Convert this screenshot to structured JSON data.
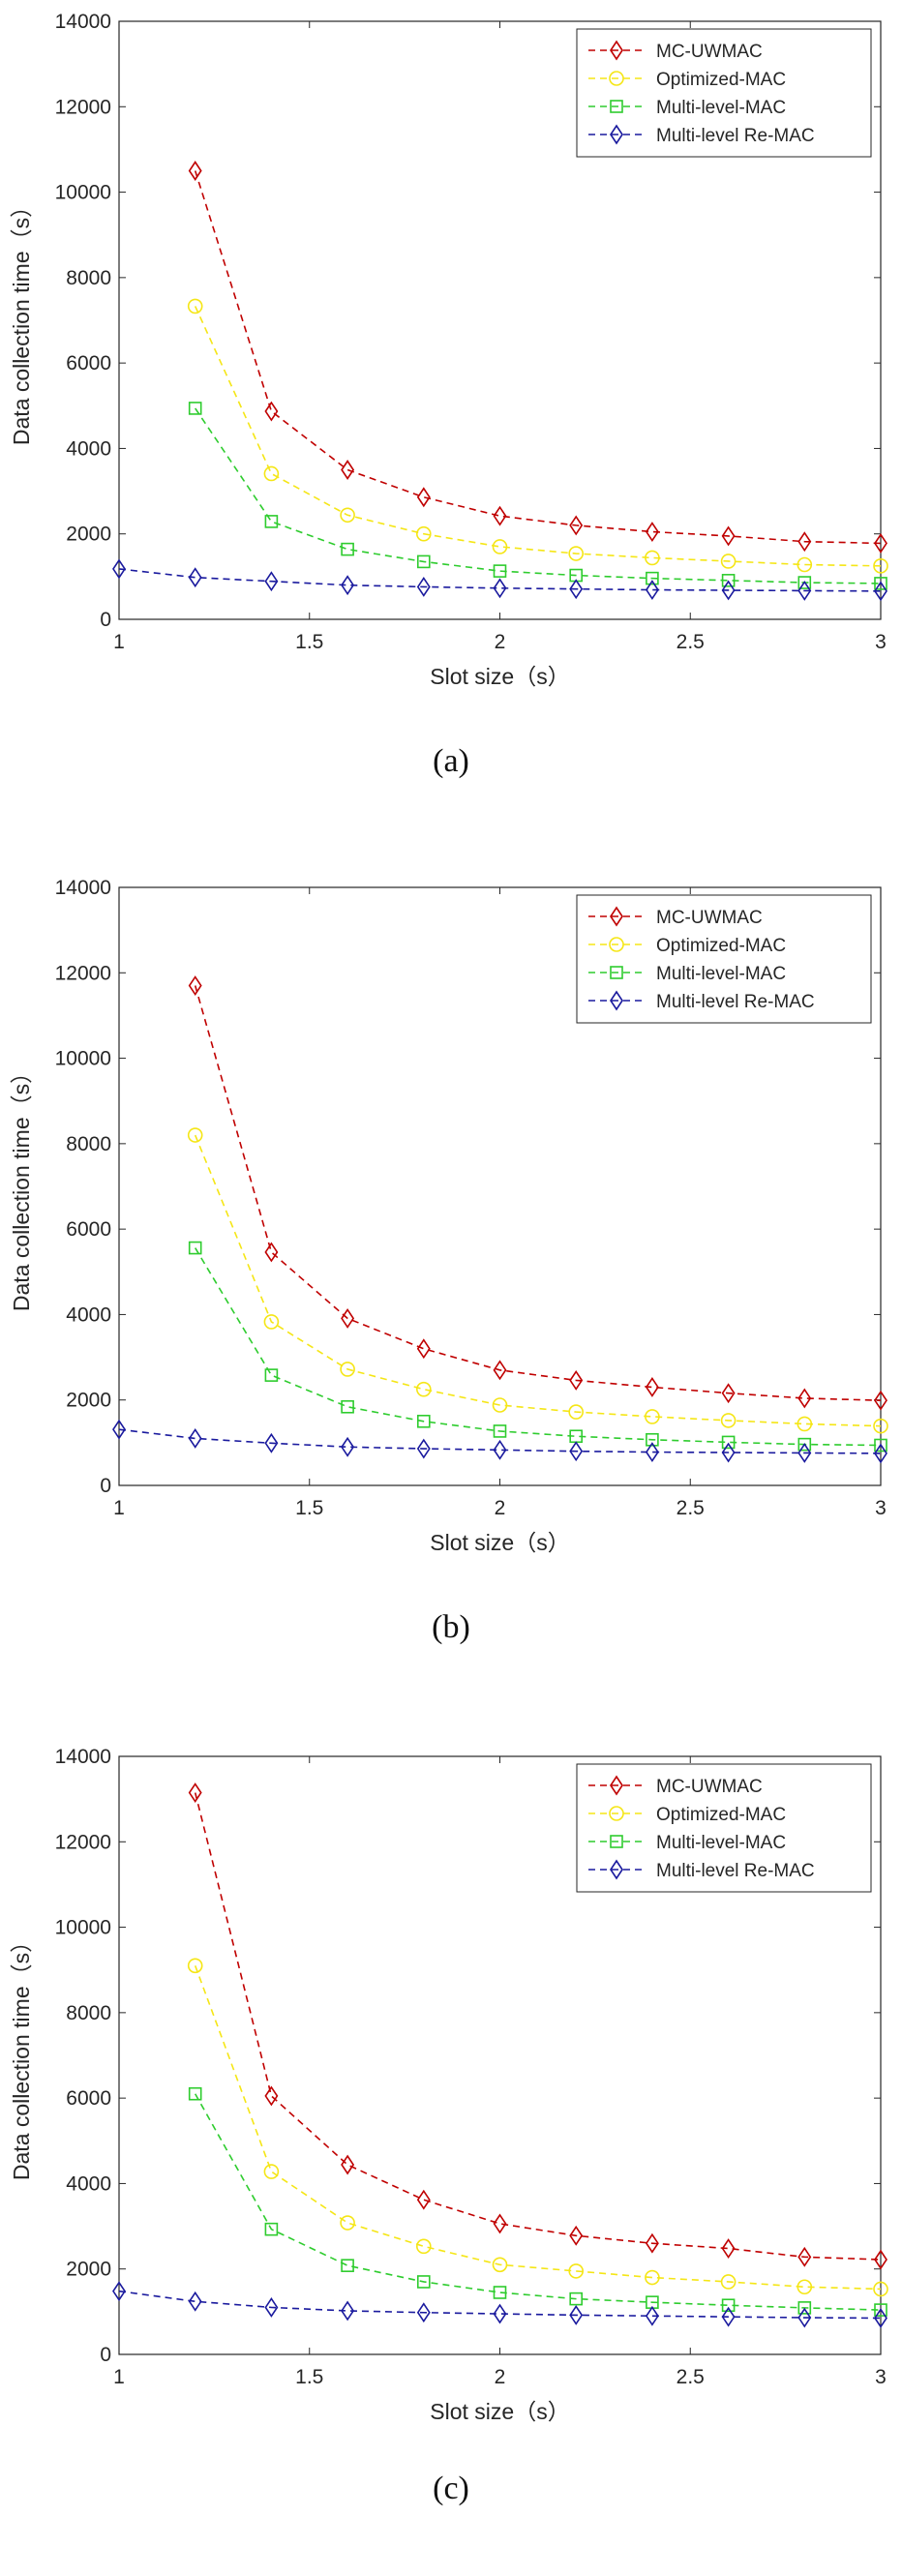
{
  "chart_data": [
    {
      "type": "line",
      "caption": "(a)",
      "xlabel": "Slot size（s）",
      "ylabel": "Data collection time（s）",
      "xlim": [
        1,
        3
      ],
      "ylim": [
        0,
        14000
      ],
      "xticks": [
        1,
        1.5,
        2,
        2.5,
        3
      ],
      "xtick_labels": [
        "1",
        "1.5",
        "2",
        "2.5",
        "3"
      ],
      "yticks": [
        0,
        2000,
        4000,
        6000,
        8000,
        10000,
        12000,
        14000
      ],
      "ytick_labels": [
        "0",
        "2000",
        "4000",
        "6000",
        "8000",
        "10000",
        "12000",
        "14000"
      ],
      "legend_position": "top-right",
      "series": [
        {
          "name": "MC-UWMAC",
          "color": "#c00000",
          "marker": "diamond",
          "x": [
            1.2,
            1.4,
            1.6,
            1.8,
            2.0,
            2.2,
            2.4,
            2.6,
            2.8,
            3.0
          ],
          "values": [
            10500,
            4870,
            3500,
            2860,
            2420,
            2200,
            2050,
            1950,
            1820,
            1780
          ]
        },
        {
          "name": "Optimized-MAC",
          "color": "#f5e616",
          "marker": "circle",
          "x": [
            1.2,
            1.4,
            1.6,
            1.8,
            2.0,
            2.2,
            2.4,
            2.6,
            2.8,
            3.0
          ],
          "values": [
            7330,
            3410,
            2440,
            2000,
            1700,
            1540,
            1440,
            1360,
            1280,
            1250
          ]
        },
        {
          "name": "Multi-level-MAC",
          "color": "#2ecc2e",
          "marker": "square",
          "x": [
            1.2,
            1.4,
            1.6,
            1.8,
            2.0,
            2.2,
            2.4,
            2.6,
            2.8,
            3.0
          ],
          "values": [
            4940,
            2290,
            1640,
            1350,
            1130,
            1030,
            960,
            910,
            860,
            840
          ]
        },
        {
          "name": "Multi-level Re-MAC",
          "color": "#1a1a9e",
          "marker": "diamond",
          "x": [
            1.0,
            1.2,
            1.4,
            1.6,
            1.8,
            2.0,
            2.2,
            2.4,
            2.6,
            2.8,
            3.0
          ],
          "values": [
            1180,
            980,
            890,
            800,
            760,
            730,
            710,
            690,
            680,
            670,
            660
          ]
        }
      ]
    },
    {
      "type": "line",
      "caption": "(b)",
      "xlabel": "Slot size（s）",
      "ylabel": "Data collection time（s）",
      "xlim": [
        1,
        3
      ],
      "ylim": [
        0,
        14000
      ],
      "xticks": [
        1,
        1.5,
        2,
        2.5,
        3
      ],
      "xtick_labels": [
        "1",
        "1.5",
        "2",
        "2.5",
        "3"
      ],
      "yticks": [
        0,
        2000,
        4000,
        6000,
        8000,
        10000,
        12000,
        14000
      ],
      "ytick_labels": [
        "0",
        "2000",
        "4000",
        "6000",
        "8000",
        "10000",
        "12000",
        "14000"
      ],
      "legend_position": "top-right",
      "series": [
        {
          "name": "MC-UWMAC",
          "color": "#c00000",
          "marker": "diamond",
          "x": [
            1.2,
            1.4,
            1.6,
            1.8,
            2.0,
            2.2,
            2.4,
            2.6,
            2.8,
            3.0
          ],
          "values": [
            11700,
            5460,
            3910,
            3200,
            2700,
            2460,
            2300,
            2160,
            2040,
            1990
          ]
        },
        {
          "name": "Optimized-MAC",
          "color": "#f5e616",
          "marker": "circle",
          "x": [
            1.2,
            1.4,
            1.6,
            1.8,
            2.0,
            2.2,
            2.4,
            2.6,
            2.8,
            3.0
          ],
          "values": [
            8200,
            3830,
            2720,
            2250,
            1880,
            1720,
            1610,
            1520,
            1440,
            1390
          ]
        },
        {
          "name": "Multi-level-MAC",
          "color": "#2ecc2e",
          "marker": "square",
          "x": [
            1.2,
            1.4,
            1.6,
            1.8,
            2.0,
            2.2,
            2.4,
            2.6,
            2.8,
            3.0
          ],
          "values": [
            5560,
            2580,
            1840,
            1500,
            1270,
            1150,
            1070,
            1010,
            960,
            940
          ]
        },
        {
          "name": "Multi-level Re-MAC",
          "color": "#1a1a9e",
          "marker": "diamond",
          "x": [
            1.0,
            1.2,
            1.4,
            1.6,
            1.8,
            2.0,
            2.2,
            2.4,
            2.6,
            2.8,
            3.0
          ],
          "values": [
            1310,
            1100,
            990,
            900,
            860,
            830,
            800,
            780,
            770,
            760,
            750
          ]
        }
      ]
    },
    {
      "type": "line",
      "caption": "(c)",
      "xlabel": "Slot size（s）",
      "ylabel": "Data collection time（s）",
      "xlim": [
        1,
        3
      ],
      "ylim": [
        0,
        14000
      ],
      "xticks": [
        1,
        1.5,
        2,
        2.5,
        3
      ],
      "xtick_labels": [
        "1",
        "1.5",
        "2",
        "2.5",
        "3"
      ],
      "yticks": [
        0,
        2000,
        4000,
        6000,
        8000,
        10000,
        12000,
        14000
      ],
      "ytick_labels": [
        "0",
        "2000",
        "4000",
        "6000",
        "8000",
        "10000",
        "12000",
        "14000"
      ],
      "legend_position": "top-right",
      "series": [
        {
          "name": "MC-UWMAC",
          "color": "#c00000",
          "marker": "diamond",
          "x": [
            1.2,
            1.4,
            1.6,
            1.8,
            2.0,
            2.2,
            2.4,
            2.6,
            2.8,
            3.0
          ],
          "values": [
            13150,
            6050,
            4440,
            3620,
            3060,
            2780,
            2600,
            2480,
            2280,
            2220
          ]
        },
        {
          "name": "Optimized-MAC",
          "color": "#f5e616",
          "marker": "circle",
          "x": [
            1.2,
            1.4,
            1.6,
            1.8,
            2.0,
            2.2,
            2.4,
            2.6,
            2.8,
            3.0
          ],
          "values": [
            9100,
            4280,
            3080,
            2530,
            2100,
            1950,
            1800,
            1700,
            1580,
            1530
          ]
        },
        {
          "name": "Multi-level-MAC",
          "color": "#2ecc2e",
          "marker": "square",
          "x": [
            1.2,
            1.4,
            1.6,
            1.8,
            2.0,
            2.2,
            2.4,
            2.6,
            2.8,
            3.0
          ],
          "values": [
            6100,
            2930,
            2080,
            1700,
            1450,
            1300,
            1220,
            1150,
            1090,
            1040
          ]
        },
        {
          "name": "Multi-level Re-MAC",
          "color": "#1a1a9e",
          "marker": "diamond",
          "x": [
            1.0,
            1.2,
            1.4,
            1.6,
            1.8,
            2.0,
            2.2,
            2.4,
            2.6,
            2.8,
            3.0
          ],
          "values": [
            1480,
            1240,
            1100,
            1020,
            980,
            950,
            920,
            900,
            880,
            860,
            850
          ]
        }
      ]
    }
  ]
}
